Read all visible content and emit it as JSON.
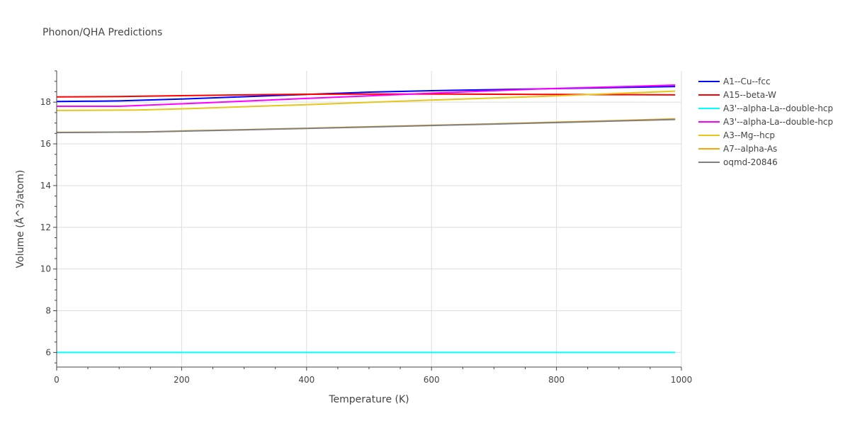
{
  "chart_data": {
    "type": "line",
    "title": "Phonon/QHA Predictions",
    "xlabel": "Temperature (K)",
    "ylabel": "Volume (Å^3/atom)",
    "xlim": [
      0,
      1000
    ],
    "ylim": [
      5.3,
      19.5
    ],
    "x_ticks": [
      0,
      200,
      400,
      600,
      800,
      1000
    ],
    "y_ticks": [
      6,
      8,
      10,
      12,
      14,
      16,
      18
    ],
    "grid": true,
    "legend_position": "right",
    "series": [
      {
        "name": "A1--Cu--fcc",
        "color": "#0000ff",
        "x": [
          0,
          100,
          200,
          300,
          400,
          500,
          600,
          700,
          800,
          900,
          990
        ],
        "y": [
          18.03,
          18.06,
          18.15,
          18.26,
          18.37,
          18.48,
          18.55,
          18.6,
          18.65,
          18.7,
          18.75
        ]
      },
      {
        "name": "A15--beta-W",
        "color": "#ff0000",
        "x": [
          0,
          100,
          200,
          300,
          400,
          500,
          600,
          700,
          800,
          900,
          990
        ],
        "y": [
          18.25,
          18.27,
          18.31,
          18.35,
          18.38,
          18.39,
          18.39,
          18.38,
          18.37,
          18.36,
          18.35
        ]
      },
      {
        "name": "A3'--alpha-La--double-hcp",
        "color": "#00ffff",
        "x": [
          0,
          990
        ],
        "y": [
          6.0,
          6.0
        ]
      },
      {
        "name": "A3'--alpha-La--double-hcp",
        "color": "#ff00ff",
        "x": [
          0,
          100,
          200,
          300,
          400,
          500,
          600,
          700,
          800,
          900,
          990
        ],
        "y": [
          17.8,
          17.8,
          17.92,
          18.05,
          18.18,
          18.3,
          18.43,
          18.55,
          18.66,
          18.74,
          18.82
        ]
      },
      {
        "name": "A3--Mg--hcp",
        "color": "#e6c619",
        "x": [
          0,
          130,
          200,
          300,
          400,
          500,
          600,
          700,
          800,
          900,
          990
        ],
        "y": [
          17.6,
          17.62,
          17.68,
          17.78,
          17.88,
          17.99,
          18.1,
          18.2,
          18.3,
          18.42,
          18.53
        ]
      },
      {
        "name": "A7--alpha-As",
        "color": "#ffa500",
        "x": [
          0,
          140,
          200,
          300,
          400,
          500,
          600,
          700,
          800,
          900,
          990
        ],
        "y": [
          16.55,
          16.57,
          16.62,
          16.68,
          16.75,
          16.82,
          16.89,
          16.96,
          17.04,
          17.12,
          17.2
        ]
      },
      {
        "name": "oqmd-20846",
        "color": "#808080",
        "x": [
          0,
          140,
          200,
          300,
          400,
          500,
          600,
          700,
          800,
          900,
          990
        ],
        "y": [
          16.54,
          16.57,
          16.61,
          16.67,
          16.74,
          16.81,
          16.88,
          16.95,
          17.02,
          17.1,
          17.17
        ]
      }
    ]
  }
}
